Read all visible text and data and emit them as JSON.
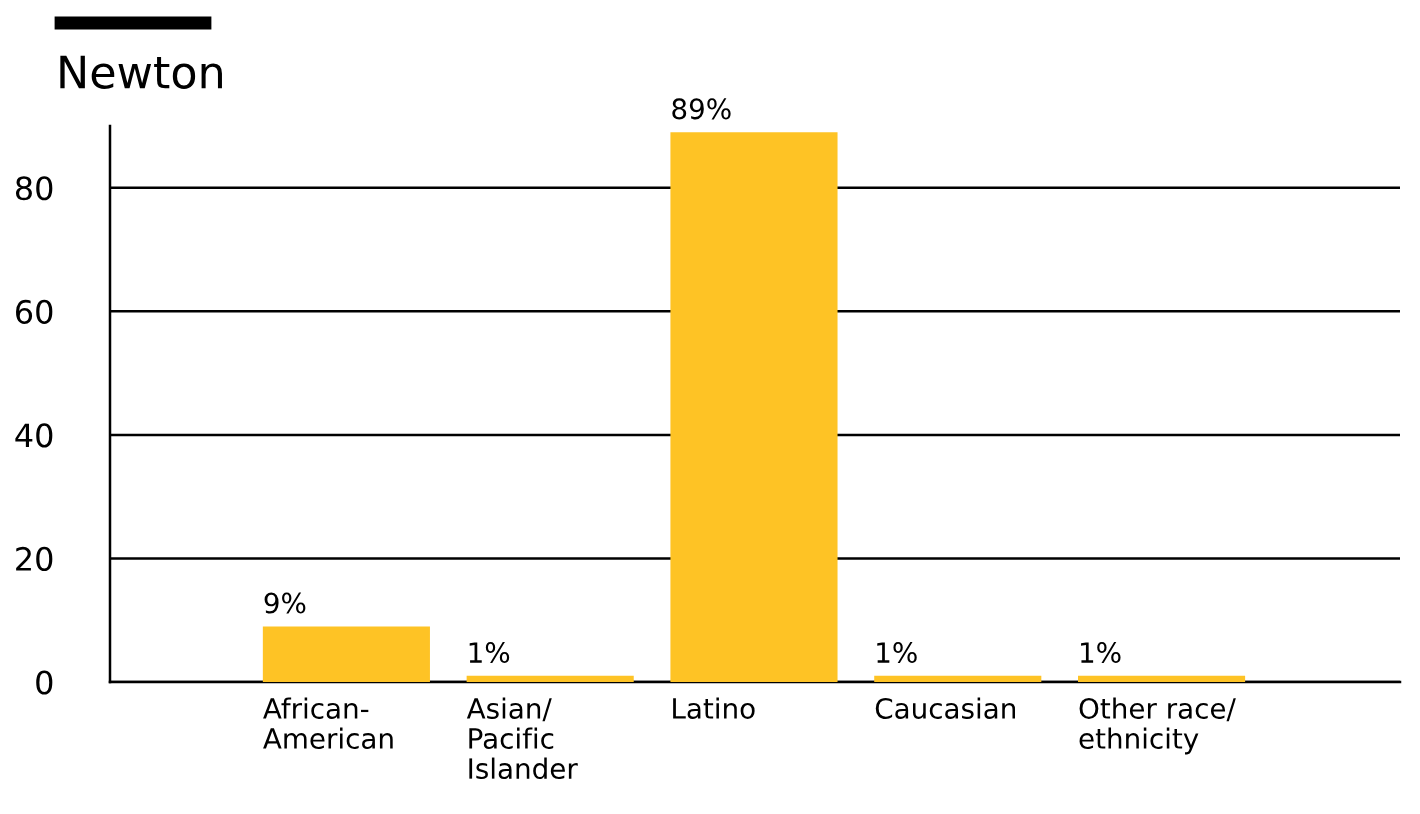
{
  "chart_data": {
    "type": "bar",
    "title": "Newton",
    "categories": [
      "African-\nAmerican",
      "Asian/\nPacific\nIslander",
      "Latino",
      "Caucasian",
      "Other race/\nethnicity"
    ],
    "values": [
      9,
      1,
      89,
      1,
      1
    ],
    "value_labels": [
      "9%",
      "1%",
      "89%",
      "1%",
      "1%"
    ],
    "color": "#fec325",
    "ylim": [
      0,
      90
    ],
    "yticks": [
      0,
      20,
      40,
      60,
      80
    ],
    "grid": "y",
    "legend": false
  }
}
